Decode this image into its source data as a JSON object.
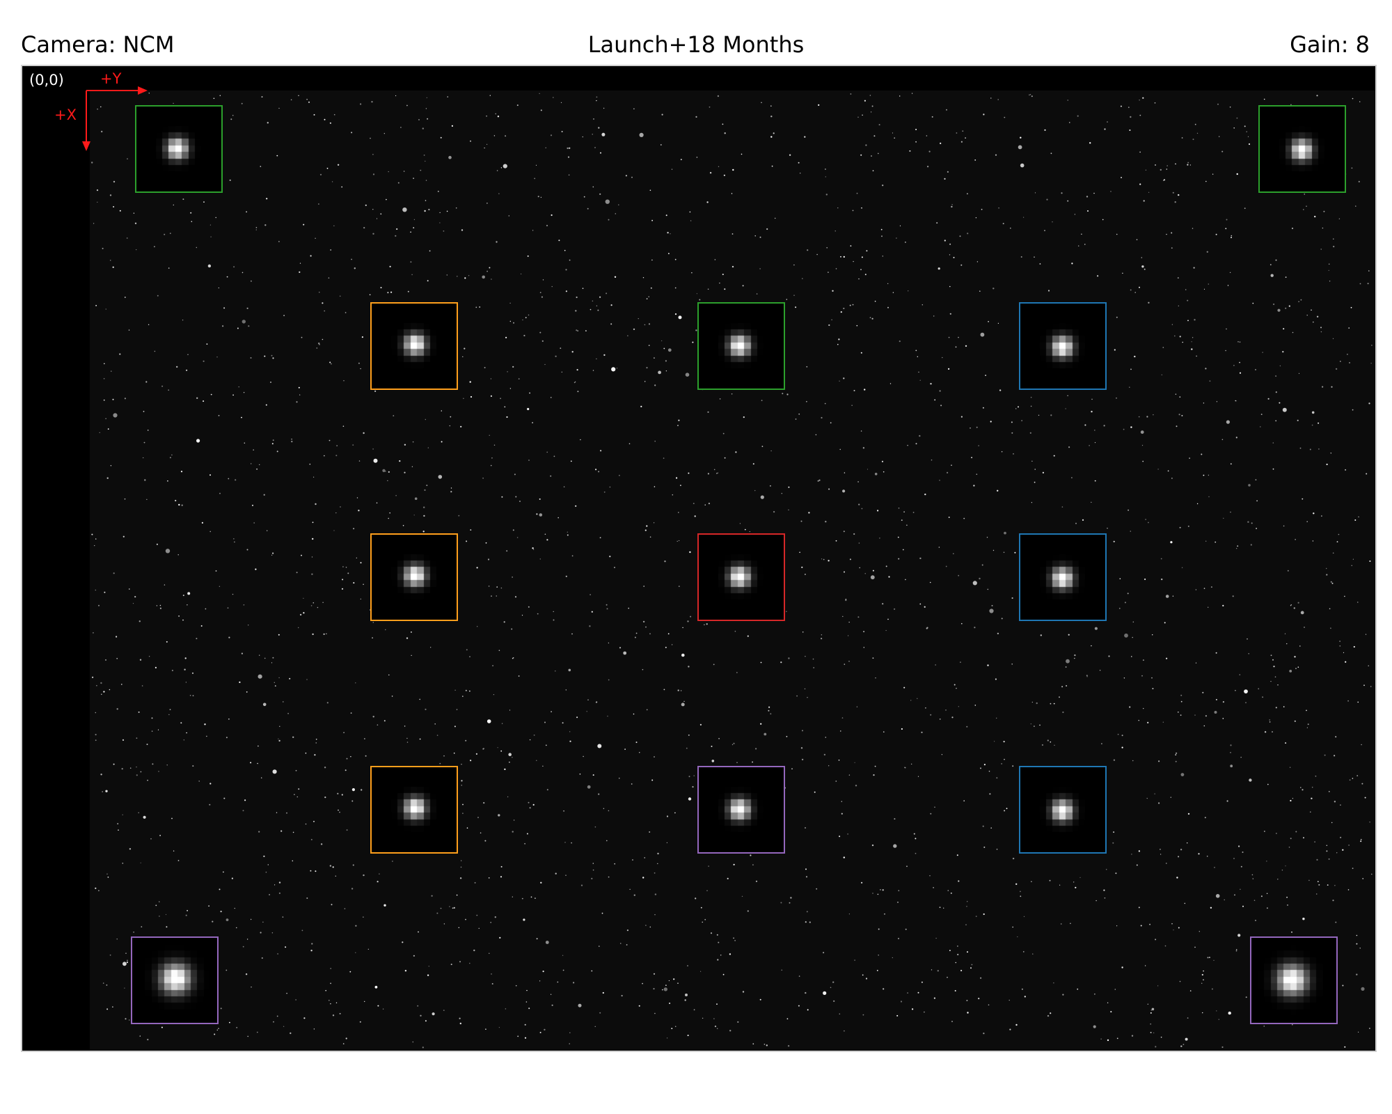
{
  "header": {
    "camera": "Camera: NCM",
    "epoch": "Launch+18 Months",
    "gain": "Gain: 8"
  },
  "image": {
    "origin_label": "(0,0)",
    "axis_y_label": "+Y",
    "axis_x_label": "+X",
    "axis_color": "#ff1a1a"
  },
  "box_colors": {
    "green": "#2ca02c",
    "orange": "#ff9f1c",
    "blue": "#1f77b4",
    "red": "#d62728",
    "purple": "#9467bd"
  },
  "psf_boxes": [
    {
      "id": "top-left",
      "color": "green"
    },
    {
      "id": "top-right",
      "color": "green"
    },
    {
      "id": "row1-left",
      "color": "orange"
    },
    {
      "id": "row1-center",
      "color": "green"
    },
    {
      "id": "row1-right",
      "color": "blue"
    },
    {
      "id": "row2-left",
      "color": "orange"
    },
    {
      "id": "row2-center",
      "color": "red"
    },
    {
      "id": "row2-right",
      "color": "blue"
    },
    {
      "id": "row3-left",
      "color": "orange"
    },
    {
      "id": "row3-center",
      "color": "purple"
    },
    {
      "id": "row3-right",
      "color": "blue"
    },
    {
      "id": "bottom-left",
      "color": "purple"
    },
    {
      "id": "bottom-right",
      "color": "purple"
    }
  ]
}
